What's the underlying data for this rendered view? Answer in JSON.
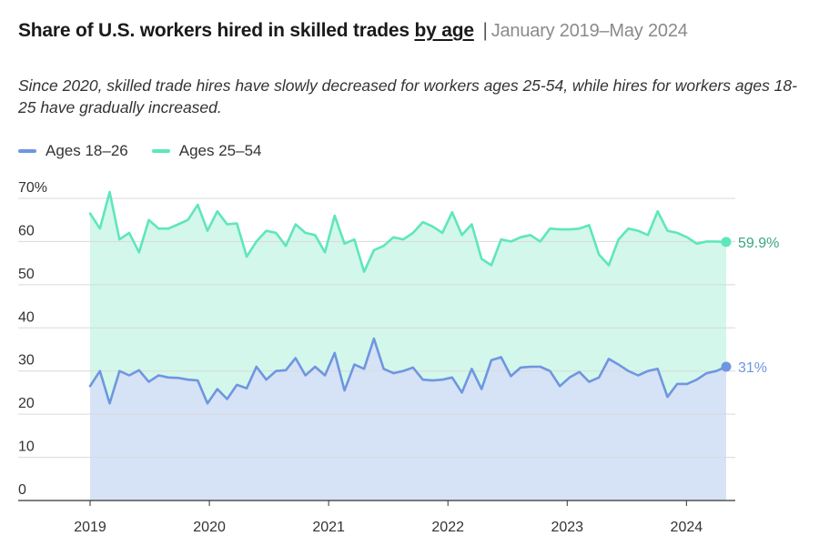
{
  "header": {
    "title_main": "Share of U.S. workers hired in skilled trades",
    "title_underline": "by age",
    "title_separator": "|",
    "title_daterange": "January 2019–May 2024",
    "subtitle": "Since 2020, skilled trade hires have slowly decreased for workers ages 25-54, while hires for workers ages 18-25 have gradually increased."
  },
  "colors": {
    "series1_line": "#6f96e0",
    "series1_fill": "#d6e2f6",
    "series2_line": "#5ee6bd",
    "series2_fill": "#d3f7ea",
    "series2_label": "#3aa586",
    "series1_label": "#6f96e0",
    "grid": "#d9d9d9",
    "axis": "#333333",
    "tick_text": "#333333"
  },
  "chart_data": {
    "type": "area",
    "title": "Share of U.S. workers hired in skilled trades by age",
    "xlabel": "",
    "ylabel": "",
    "x_start": 2019.0,
    "x_end": 2024.333,
    "xlim": [
      2019.0,
      2024.333
    ],
    "ylim": [
      0,
      70
    ],
    "yticks": [
      0,
      10,
      20,
      30,
      40,
      50,
      60,
      70
    ],
    "ytick_labels": [
      "0",
      "10",
      "20",
      "30",
      "40",
      "50",
      "60",
      "70%"
    ],
    "xticks": [
      2019,
      2020,
      2021,
      2022,
      2023,
      2024
    ],
    "xtick_labels": [
      "2019",
      "2020",
      "2021",
      "2022",
      "2023",
      "2024"
    ],
    "grid": true,
    "legend_position": "top-left",
    "series": [
      {
        "name": "Ages 18–26",
        "end_label": "31%",
        "values": [
          26.5,
          30.0,
          22.5,
          30.0,
          29.0,
          30.2,
          27.5,
          29.0,
          28.5,
          28.4,
          28.0,
          27.8,
          22.5,
          25.8,
          23.5,
          26.8,
          26.0,
          31.0,
          28.0,
          30.0,
          30.2,
          33.0,
          29.0,
          31.0,
          29.0,
          34.2,
          25.5,
          31.5,
          30.5,
          37.5,
          30.5,
          29.5,
          30.0,
          30.8,
          28.0,
          27.8,
          28.0,
          28.5,
          25.0,
          30.5,
          25.8,
          32.5,
          33.2,
          28.8,
          30.8,
          31.0,
          31.0,
          30.0,
          26.5,
          28.5,
          29.8,
          27.5,
          28.5,
          32.8,
          31.5,
          30.0,
          29.0,
          30.0,
          30.5,
          24.0,
          27.0,
          27.0,
          28.0,
          29.5,
          30.0,
          31.0
        ]
      },
      {
        "name": "Ages 25–54",
        "end_label": "59.9%",
        "values": [
          66.5,
          63.0,
          71.5,
          60.5,
          62.0,
          57.5,
          65.0,
          63.0,
          63.0,
          64.0,
          65.0,
          68.5,
          62.5,
          67.0,
          64.0,
          64.2,
          56.5,
          60.0,
          62.5,
          62.0,
          59.0,
          64.0,
          62.0,
          61.5,
          57.5,
          66.0,
          59.5,
          60.5,
          53.0,
          58.0,
          59.0,
          61.0,
          60.5,
          62.0,
          64.5,
          63.5,
          62.0,
          66.8,
          61.5,
          64.0,
          56.0,
          54.5,
          60.5,
          60.0,
          61.0,
          61.5,
          60.0,
          63.0,
          62.8,
          62.8,
          63.0,
          63.8,
          57.0,
          54.5,
          60.5,
          63.0,
          62.5,
          61.5,
          67.0,
          62.5,
          62.0,
          61.0,
          59.5,
          60.0,
          60.0,
          59.9
        ]
      }
    ]
  }
}
